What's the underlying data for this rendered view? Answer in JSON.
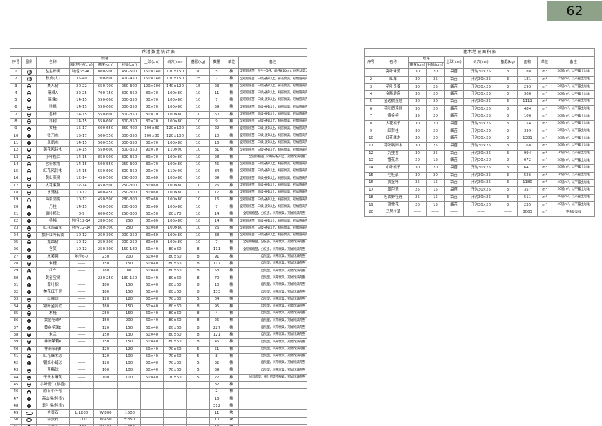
{
  "page": {
    "number": "62",
    "badge_color": "#8DA288"
  },
  "left_table": {
    "title": "乔灌数量统计表",
    "headers": {
      "seq": "序号",
      "legend": "图例",
      "name": "名称",
      "spec": "规格",
      "spec_sub": [
        "胸(地)径(cm)",
        "高度(cm)",
        "冠幅(cm)"
      ],
      "soil_ball": "土球(cm)",
      "pit": "树穴(cm)",
      "fertilizer": "基肥(kg)",
      "qty": "数量",
      "unit": "单位",
      "remark": "备注"
    },
    "rows": [
      [
        "1",
        "cluster-tree",
        "丛生朴树",
        "地径35-40",
        "800-900",
        "450-500",
        "150×140",
        "170×150",
        "30",
        "5",
        "株",
        "全冠假植苗，丛生～5杆，单杆8-10cm，树形优美，冠幅完整饱满"
      ],
      [
        "2",
        "cluster-tree",
        "秋枫(大)",
        "35-40",
        "700-800",
        "400-450",
        "150×140",
        "170×150",
        "25",
        "2",
        "株",
        "全冠假植苗，三级分枝以上，形态优美，冠幅饱满完整"
      ],
      [
        "3",
        "tree",
        "美人树",
        "20-22",
        "650-700",
        "250-300",
        "120×100",
        "140×120",
        "15",
        "23",
        "株",
        "全冠假植苗，三级分枝以上，形态优美，冠幅饱满完整"
      ],
      [
        "4",
        "tree",
        "麻楝A",
        "22-25",
        "700-750",
        "300-350",
        "80×70",
        "100×80",
        "10",
        "11",
        "株",
        "全冠假植苗，三级分枝以上，树形优美，冠幅饱满完整"
      ],
      [
        "5",
        "tree",
        "麻楝B",
        "14-15",
        "550-600",
        "300-350",
        "80×70",
        "100×80",
        "10",
        "7",
        "株",
        "全冠假植苗，三级分枝以上，树形优美，冠幅饱满完整"
      ],
      [
        "6",
        "tree",
        "秋枫",
        "14-15",
        "550-600",
        "300-350",
        "80×70",
        "100×80",
        "10",
        "59",
        "株",
        "全冠假植苗，三级分枝以上，树形优美，冠幅饱满完整"
      ],
      [
        "7",
        "tree",
        "香樟",
        "14-15",
        "550-600",
        "300-350",
        "80×70",
        "100×80",
        "10",
        "60",
        "株",
        "全冠假植苗，三级分枝以上，树形优美，冠幅饱满完整"
      ],
      [
        "8",
        "tree",
        "朴树",
        "14-15",
        "550-600",
        "300-350",
        "80×70",
        "100×80",
        "10",
        "9",
        "株",
        "全冠假植苗，三级分枝以上，树形优美，冠幅饱满完整"
      ],
      [
        "9",
        "tree",
        "黄槿",
        "15-17",
        "600-650",
        "350-400",
        "100×80",
        "120×100",
        "10",
        "22",
        "株",
        "全冠假植苗，三级分枝以上，树形优美，冠幅饱满完整"
      ],
      [
        "10",
        "tree",
        "铁刀木",
        "15-17",
        "500-550",
        "300-350",
        "100×80",
        "120×100",
        "10",
        "10",
        "株",
        "全冠假植苗，三级分枝以上，树形优美，冠幅饱满完整"
      ],
      [
        "11",
        "tree",
        "凤凰木",
        "14-15",
        "500-550",
        "300-350",
        "80×70",
        "100×80",
        "10",
        "16",
        "株",
        "全冠假植苗，三级分枝以上，树形优美，冠幅饱满完整"
      ],
      [
        "12",
        "tree",
        "黄花风铃木",
        "14-15",
        "550-600",
        "300-350",
        "90×70",
        "110×90",
        "10",
        "31",
        "株",
        "全冠假植苗，三级分枝以上，树形优美，冠幅饱满完整"
      ],
      [
        "13",
        "tree",
        "小叶榄仁",
        "14-15",
        "850-900",
        "300-350",
        "80×70",
        "100×80",
        "10",
        "28",
        "株",
        "全冠假植苗，四级分枝以上，冠幅饱满完整"
      ],
      [
        "14",
        "tree",
        "宫粉紫荆",
        "14-15",
        "500-550",
        "250-300",
        "80×70",
        "100×80",
        "10",
        "45",
        "株",
        "全冠假植苗，三级分枝以上，树形优美，冠幅饱满完整"
      ],
      [
        "15",
        "tree",
        "红花风铃木",
        "14-15",
        "550-600",
        "300-350",
        "90×70",
        "110×90",
        "10",
        "84",
        "株",
        "全冠假植苗，三级分枝以上，树形优美，冠幅饱满完整"
      ],
      [
        "16",
        "tree",
        "黄山栾树",
        "12-14",
        "450-500",
        "250-300",
        "80×60",
        "100×80",
        "10",
        "39",
        "株",
        "全冠假植苗，三级分枝以上，树形优美，冠幅饱满完整"
      ],
      [
        "17",
        "tree",
        "大花紫薇",
        "12-14",
        "450-500",
        "250-300",
        "80×60",
        "100×80",
        "10",
        "26",
        "株",
        "全冠假植苗，三级分枝以上，树形优美，冠幅饱满完整"
      ],
      [
        "18",
        "tree",
        "水蒲桃",
        "10-12",
        "400-450",
        "250-300",
        "80×60",
        "100×80",
        "10",
        "17",
        "株",
        "全冠假植苗，三级分枝以上，树形优美，冠幅饱满完整"
      ],
      [
        "19",
        "tree",
        "海南蒲桃",
        "10-12",
        "450-500",
        "280-300",
        "80×60",
        "100×80",
        "10",
        "16",
        "株",
        "全冠假植苗，三级分枝以上，树形优美，冠幅饱满完整"
      ],
      [
        "20",
        "tree",
        "丹桂",
        "14-15",
        "450-500",
        "280-300",
        "80×60",
        "100×80",
        "10",
        "7",
        "株",
        "全冠假植苗，三级分枝以上，树形优美，冠幅饱满完整"
      ],
      [
        "21",
        "tree",
        "锦叶榄仁",
        "8-9",
        "600-650",
        "250-300",
        "60×50",
        "80×70",
        "10",
        "14",
        "株",
        "全冠假植苗，分枝多，树形优美，冠幅饱满完整"
      ],
      [
        "22",
        "shrub",
        "杨梅",
        "地径12-14",
        "280-300",
        "250",
        "80×60",
        "100×80",
        "10",
        "14",
        "株",
        "全冠假植苗，三级分枝以上，树形优美，冠幅饱满完整"
      ],
      [
        "23",
        "shrub",
        "红花鸡蛋花",
        "地径12-14",
        "280-300",
        "250",
        "80×60",
        "100×80",
        "10",
        "26",
        "株",
        "全冠假植苗，三级分枝以上，树形优美，冠幅饱满完整"
      ],
      [
        "24",
        "shrub",
        "独杆红叶石楠",
        "10-12",
        "250-300",
        "200-250",
        "80×60",
        "100×80",
        "10",
        "38",
        "株",
        "全冠假植苗，三级分枝以上，树形优美，冠幅饱满完整"
      ],
      [
        "25",
        "shrub",
        "龙血树",
        "10-12",
        "250-300",
        "200-250",
        "80×60",
        "100×80",
        "10",
        "7",
        "株",
        "全冠假植苗，分枝多，树形优美，冠幅饱满完整"
      ],
      [
        "26",
        "shrub",
        "含笑",
        "10-12",
        "250-300",
        "150-180",
        "60×40",
        "80×60",
        "8",
        "111",
        "株",
        "全冠假植苗，分枝多，树形优美，冠幅饱满完整"
      ],
      [
        "27",
        "shrub",
        "木芙蓉",
        "地径6-7",
        "230",
        "200",
        "60×40",
        "80×60",
        "8",
        "91",
        "株",
        "自然型，树形优美，冠幅饱满完整"
      ],
      [
        "28",
        "shrub",
        "朱槿",
        "——",
        "150",
        "150",
        "60×40",
        "80×60",
        "8",
        "117",
        "株",
        "自然型，树形优美，冠幅饱满完整"
      ],
      [
        "29",
        "shrub",
        "红车",
        "——",
        "180",
        "80",
        "60×40",
        "80×60",
        "8",
        "53",
        "株",
        "自然型，树形优美，冠幅饱满完整"
      ],
      [
        "30",
        "shrub",
        "黄金宝树",
        "——",
        "220-250",
        "130-150",
        "60×40",
        "80×60",
        "8",
        "70",
        "株",
        "自然型，树形优美，冠幅饱满完整"
      ],
      [
        "31",
        "shrub",
        "翠叶棕",
        "——",
        "180",
        "150",
        "60×40",
        "80×60",
        "8",
        "10",
        "株",
        "自然型，树形优美，冠幅饱满完整"
      ],
      [
        "32",
        "shrub",
        "美花红千层",
        "——",
        "180",
        "150",
        "60×40",
        "80×60",
        "8",
        "133",
        "株",
        "自然型，树形优美，冠幅饱满完整"
      ],
      [
        "33",
        "shrub",
        "红绒球",
        "——",
        "120",
        "120",
        "50×40",
        "70×60",
        "5",
        "64",
        "株",
        "自然型，树形优美，冠幅饱满完整"
      ],
      [
        "34",
        "shrub",
        "银叶金合欢",
        "——",
        "180",
        "150",
        "60×40",
        "80×60",
        "8",
        "95",
        "株",
        "自然型，树形优美，冠幅饱满完整"
      ],
      [
        "35",
        "shrub",
        "木槿",
        "——",
        "250",
        "150",
        "60×40",
        "80×60",
        "8",
        "4",
        "株",
        "自然型，树形优美，冠幅饱满完整"
      ],
      [
        "36",
        "shrub",
        "黄金榕球A",
        "——",
        "150",
        "200",
        "60×40",
        "80×60",
        "8",
        "25",
        "株",
        "自然型，树形优美，冠幅饱满完整"
      ],
      [
        "37",
        "shrub",
        "黄金榕球B",
        "——",
        "120",
        "150",
        "60×40",
        "80×60",
        "8",
        "227",
        "株",
        "自然型，树形优美，冠幅饱满完整"
      ],
      [
        "38",
        "shrub",
        "米兰",
        "——",
        "150",
        "130",
        "60×40",
        "80×60",
        "8",
        "121",
        "株",
        "自然型，树形优美，冠幅饱满完整"
      ],
      [
        "39",
        "shrub",
        "非洲茉莉A",
        "——",
        "150",
        "150",
        "60×40",
        "80×60",
        "8",
        "46",
        "株",
        "自然型，树形优美，冠幅饱满完整"
      ],
      [
        "40",
        "shrub",
        "非洲茉莉B",
        "——",
        "120",
        "120",
        "50×40",
        "70×60",
        "5",
        "51",
        "株",
        "自然型，树形优美，冠幅饱满完整"
      ],
      [
        "41",
        "shrub",
        "红花继木球",
        "——",
        "120",
        "100",
        "50×40",
        "70×60",
        "5",
        "8",
        "株",
        "自然型，树形优美，冠幅饱满完整"
      ],
      [
        "42",
        "shrub",
        "银姬小蜡球",
        "——",
        "120",
        "100",
        "50×40",
        "70×60",
        "5",
        "32",
        "株",
        "自然型，树形优美，冠幅饱满完整"
      ],
      [
        "43",
        "shrub",
        "茶梅球",
        "——",
        "100",
        "100",
        "50×40",
        "70×60",
        "5",
        "39",
        "株",
        "自然型，树形优美，冠幅饱满完整"
      ],
      [
        "44",
        "shrub",
        "千头木麻黄",
        "——",
        "100",
        "100",
        "50×40",
        "70×60",
        "5",
        "22",
        "株",
        "修剪造型，枝叶密实不脱脚，冠幅饱满完整"
      ],
      [
        "45",
        "tree-transplant",
        "小叶榄仁(移植)",
        "",
        "",
        "",
        "",
        "",
        "",
        "32",
        "株",
        ""
      ],
      [
        "46",
        "existing-tree",
        "原有小叶榕",
        "",
        "",
        "",
        "",
        "",
        "",
        "2",
        "株",
        ""
      ],
      [
        "47",
        "tree-transplant",
        "高山榕(移植)",
        "",
        "",
        "",
        "",
        "",
        "",
        "16",
        "株",
        ""
      ],
      [
        "48",
        "tree-transplant",
        "垂叶榕(移植)",
        "",
        "",
        "",
        "",
        "",
        "",
        "312",
        "株",
        ""
      ],
      [
        "49",
        "stone-large",
        "大景石",
        "L:1200",
        "W:800",
        "H:500",
        "",
        "",
        "",
        "11",
        "块",
        ""
      ],
      [
        "50",
        "stone-medium",
        "中景石",
        "L:700",
        "W:450",
        "H:350",
        "",
        "",
        "",
        "10",
        "块",
        ""
      ],
      [
        "51",
        "stone-small",
        "小景石",
        "L:500",
        "W:400",
        "H:300",
        "",
        "",
        "",
        "12",
        "块",
        ""
      ]
    ]
  },
  "right_table": {
    "title": "灌木地被面积表",
    "headers": {
      "seq": "序号",
      "name": "名称",
      "spec": "规格",
      "spec_sub": [
        "高度(cm)",
        "冠幅(cm)"
      ],
      "soil_ball": "土球(cm)",
      "pit": "树穴(cm)",
      "fertilizer": "基肥(kg)",
      "area": "面积",
      "unit": "单位",
      "remark": "备注"
    },
    "rows": [
      [
        "1",
        "亮叶朱蕉",
        "30",
        "20",
        "袋苗",
        "开沟30×25",
        "3",
        "188",
        "m²",
        "36袋/m²，以不露土为准"
      ],
      [
        "2",
        "红车",
        "30",
        "25",
        "袋苗",
        "开沟30×25",
        "3",
        "181",
        "m²",
        "25袋/m²，以不露土为准"
      ],
      [
        "3",
        "花叶良姜",
        "30",
        "25",
        "袋苗",
        "开沟30×25",
        "3",
        "293",
        "m²",
        "36袋/m²，以不露土为准"
      ],
      [
        "4",
        "金脉爵床",
        "30",
        "20",
        "袋苗",
        "开沟30×25",
        "3",
        "366",
        "m²",
        "36袋/m²，以不露土为准"
      ],
      [
        "5",
        "金边假连翘",
        "30",
        "20",
        "袋苗",
        "开沟30×25",
        "3",
        "1111",
        "m²",
        "36袋/m²，以不露土为准"
      ],
      [
        "6",
        "花叶假连翘",
        "30",
        "20",
        "袋苗",
        "开沟30×25",
        "3",
        "484",
        "m²",
        "36袋/m²，以不露土为准"
      ],
      [
        "7",
        "黄金榕",
        "35",
        "20",
        "袋苗",
        "开沟30×25",
        "3",
        "106",
        "m²",
        "36袋/m²，以不露土为准"
      ],
      [
        "8",
        "大花栀子",
        "30",
        "20",
        "袋苗",
        "开沟30×25",
        "3",
        "154",
        "m²",
        "36袋/m²，以不露土为准"
      ],
      [
        "9",
        "红背桂",
        "30",
        "20",
        "袋苗",
        "开沟30×25",
        "3",
        "399",
        "m²",
        "36袋/m²，以不露土为准"
      ],
      [
        "10",
        "红花檵木",
        "30",
        "20",
        "袋苗",
        "开沟30×25",
        "3",
        "1381",
        "m²",
        "36袋/m²，以不露土为准"
      ],
      [
        "11",
        "花叶鸭脚木",
        "30",
        "25",
        "袋苗",
        "开沟30×25",
        "3",
        "168",
        "m²",
        "36袋/m²，以不露土为准"
      ],
      [
        "12",
        "九里香",
        "30",
        "25",
        "袋苗",
        "开沟30×25",
        "3",
        "994",
        "m²",
        "36袋/m²，以不露土为准"
      ],
      [
        "13",
        "雪花木",
        "20",
        "15",
        "袋苗",
        "开沟30×20",
        "3",
        "672",
        "m²",
        "36袋/m²，以不露土为准"
      ],
      [
        "14",
        "小叶栀子",
        "30",
        "20",
        "袋苗",
        "开沟30×25",
        "3",
        "641",
        "m²",
        "36袋/m²，以不露土为准"
      ],
      [
        "15",
        "毛杜鹃",
        "30",
        "20",
        "袋苗",
        "开沟30×25",
        "3",
        "526",
        "m²",
        "36袋/m²，以不露土为准"
      ],
      [
        "16",
        "黄金叶",
        "25",
        "15",
        "袋苗",
        "开沟30×25",
        "3",
        "1180",
        "m²",
        "49袋/m²，以不露土为准"
      ],
      [
        "17",
        "翠芦莉",
        "25",
        "15",
        "袋苗",
        "开沟30×25",
        "3",
        "357",
        "m²",
        "36袋/m²，以不露土为准"
      ],
      [
        "18",
        "巴西野牡丹",
        "25",
        "15",
        "袋苗",
        "开沟30×25",
        "3",
        "511",
        "m²",
        "49袋/m²，以不露土为准"
      ],
      [
        "19",
        "蓝雪花",
        "20",
        "15",
        "袋苗",
        "开沟30×20",
        "3",
        "235",
        "m²",
        "49袋/m²，以不露土为准"
      ],
      [
        "20",
        "马尼拉草",
        "——",
        "——",
        "——",
        "——",
        "——",
        "8063",
        "m²",
        "空余处复绿"
      ]
    ]
  }
}
